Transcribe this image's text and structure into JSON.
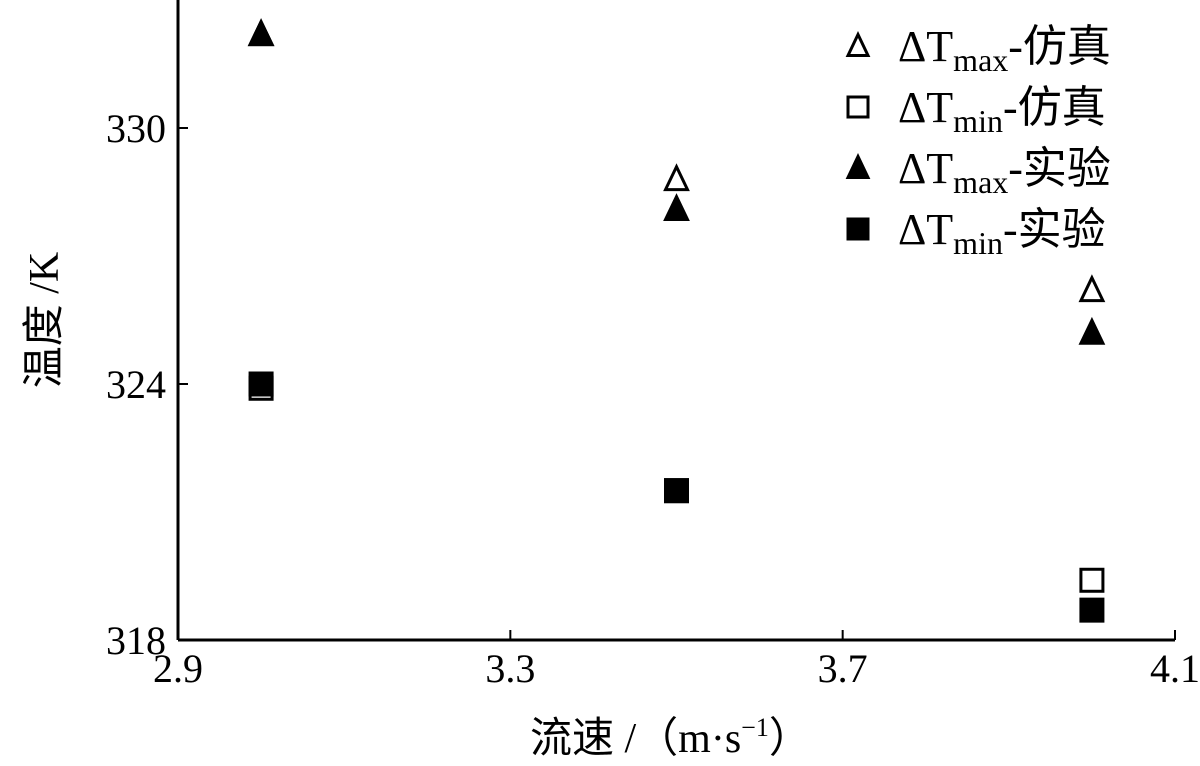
{
  "chart_data": {
    "type": "scatter",
    "xlabel": "流速 /（m·s",
    "xlabel_sup": "−1",
    "xlabel_close": "）",
    "ylabel": "温度 /K",
    "xlim": [
      2.9,
      4.1
    ],
    "ylim": [
      318,
      333
    ],
    "x_ticks": [
      "2.9",
      "3.3",
      "3.7",
      "4.1"
    ],
    "y_ticks": [
      "318",
      "324",
      "330"
    ],
    "grid": false,
    "legend_position": "top-right",
    "series": [
      {
        "name_prefix": "ΔT",
        "name_sub": "max",
        "name_suffix": "-仿真",
        "marker": "triangle",
        "filled": false,
        "x": [
          3.0,
          3.5,
          4.0
        ],
        "y": [
          332.2,
          328.8,
          326.2
        ]
      },
      {
        "name_prefix": "ΔT",
        "name_sub": "min",
        "name_suffix": "-仿真",
        "marker": "square",
        "filled": false,
        "x": [
          3.0,
          3.5,
          4.0
        ],
        "y": [
          323.9,
          321.5,
          319.4
        ]
      },
      {
        "name_prefix": "ΔT",
        "name_sub": "max",
        "name_suffix": "-实验",
        "marker": "triangle",
        "filled": true,
        "x": [
          3.0,
          3.5,
          4.0
        ],
        "y": [
          332.2,
          328.1,
          325.2
        ]
      },
      {
        "name_prefix": "ΔT",
        "name_sub": "min",
        "name_suffix": "-实验",
        "marker": "square",
        "filled": true,
        "x": [
          3.0,
          3.5,
          4.0
        ],
        "y": [
          324.0,
          321.5,
          318.7
        ]
      }
    ]
  },
  "colors": {
    "ink": "#000000",
    "background": "#ffffff"
  }
}
